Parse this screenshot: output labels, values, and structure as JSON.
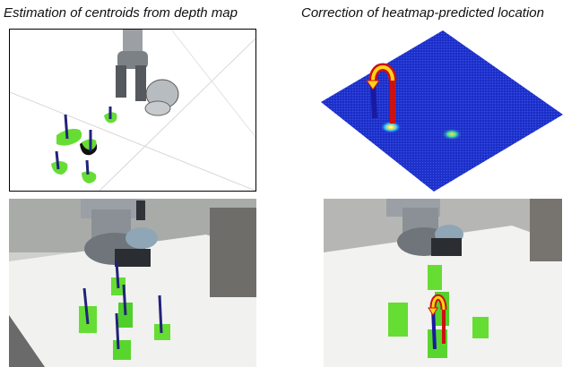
{
  "captions": {
    "left": "Estimation of centroids from depth map",
    "right": "Correction of heatmap-predicted location"
  },
  "panels": {
    "top_left": "depth-map-centroids-render",
    "top_right": "heatmap-surface-render",
    "bottom_left": "robot-photo-centroids",
    "bottom_right": "robot-photo-corrected-location"
  },
  "colors": {
    "object_green": "#66dd33",
    "centroid_line": "#22227a",
    "heatmap_blue": "#1a2ec8",
    "heatmap_peak": "#ff3322",
    "arrow_yellow": "#ffd21a",
    "arrow_red": "#cc1111",
    "robot_gray": "#8a9096"
  }
}
